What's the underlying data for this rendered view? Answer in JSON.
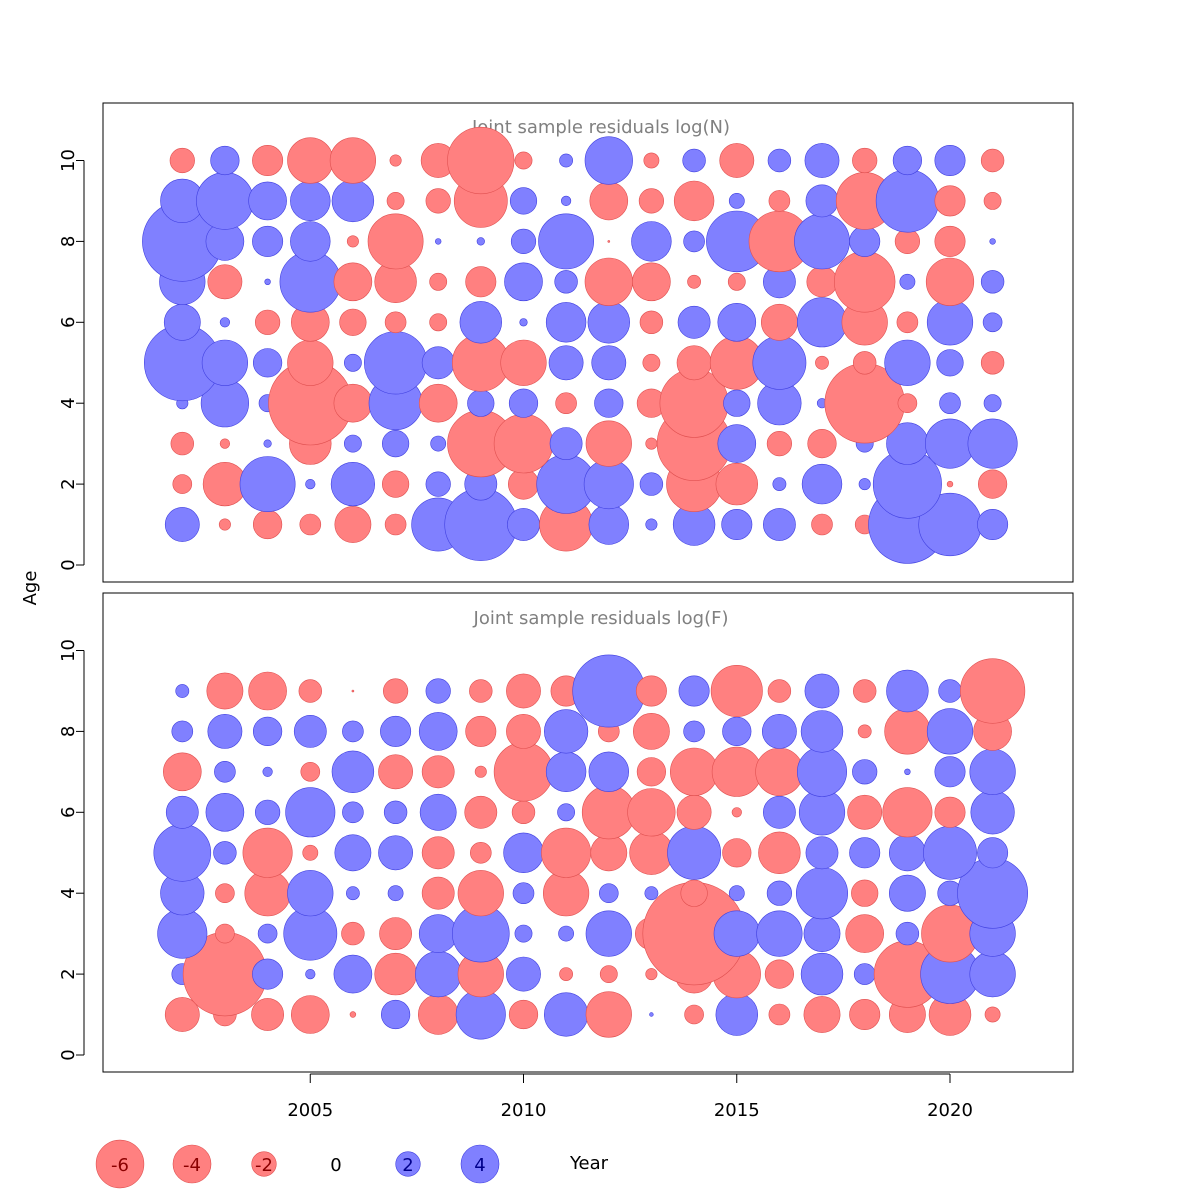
{
  "colors": {
    "negative": "#ff8080",
    "negative_stroke": "#e05050",
    "positive": "#8080ff",
    "positive_stroke": "#4040e0",
    "title": "#808080"
  },
  "axes": {
    "ylabel": "Age",
    "xlabel": "Year"
  },
  "legend": {
    "items": [
      {
        "label": "-6",
        "value": -6
      },
      {
        "label": "-4",
        "value": -4
      },
      {
        "label": "-2",
        "value": -2
      },
      {
        "label": "0",
        "value": 0
      },
      {
        "label": "2",
        "value": 2
      },
      {
        "label": "4",
        "value": 4
      }
    ]
  },
  "chart_data": [
    {
      "type": "scatter",
      "subtype": "bubble",
      "title": "Joint sample residuals log(N)",
      "xlabel": "Year",
      "ylabel": "Age",
      "xlim": [
        2000,
        2023
      ],
      "ylim": [
        -0.4,
        11.4
      ],
      "xticks": [
        "2005",
        "2010",
        "2015",
        "2020"
      ],
      "yticks": [
        "0",
        "2",
        "4",
        "6",
        "8",
        "10"
      ],
      "years": [
        2002,
        2003,
        2004,
        2005,
        2006,
        2007,
        2008,
        2009,
        2010,
        2011,
        2012,
        2013,
        2014,
        2015,
        2016,
        2017,
        2018,
        2019,
        2020,
        2021
      ],
      "ages": [
        1,
        2,
        3,
        4,
        5,
        6,
        7,
        8,
        9,
        10
      ],
      "residuals": [
        [
          1.8,
          -0.6,
          -1.5,
          -1.1,
          -1.9,
          -1.1,
          2.8,
          3.8,
          1.7,
          -2.8,
          2.1,
          0.6,
          2.2,
          1.6,
          1.7,
          -1.1,
          -1.0,
          4.1,
          3.3,
          1.6
        ],
        [
          -1.0,
          -2.3,
          2.9,
          0.5,
          2.3,
          -1.4,
          1.3,
          1.7,
          -1.6,
          3.1,
          2.6,
          1.2,
          -2.9,
          -2.2,
          0.7,
          2.1,
          0.6,
          3.6,
          -0.3,
          -1.5
        ],
        [
          -1.2,
          -0.5,
          0.4,
          -2.2,
          0.9,
          1.4,
          0.8,
          -3.5,
          -3.1,
          1.7,
          -2.4,
          -0.6,
          -3.9,
          2.0,
          -1.3,
          -1.5,
          0.9,
          2.2,
          2.6,
          2.6
        ],
        [
          0.6,
          2.5,
          0.9,
          -4.4,
          -2.0,
          2.8,
          -2.0,
          1.4,
          1.5,
          -1.1,
          1.5,
          -1.5,
          -3.6,
          1.4,
          2.3,
          0.5,
          -4.2,
          -1.0,
          1.1,
          0.9
        ],
        [
          4.0,
          2.4,
          1.5,
          -2.4,
          0.9,
          3.3,
          1.7,
          -3.0,
          -2.4,
          1.8,
          1.8,
          -0.9,
          -1.8,
          -2.8,
          2.8,
          -0.7,
          -1.2,
          2.4,
          1.4,
          -1.2
        ],
        [
          1.9,
          0.5,
          -1.3,
          -2.0,
          -1.4,
          -1.1,
          -0.9,
          2.2,
          0.4,
          2.1,
          2.2,
          -1.2,
          1.7,
          2.0,
          -1.9,
          2.6,
          -2.4,
          -1.1,
          2.4,
          1.0
        ],
        [
          2.4,
          -1.8,
          0.3,
          3.2,
          -2.0,
          -2.2,
          -0.9,
          -1.6,
          2.0,
          1.2,
          -2.5,
          -2.0,
          -0.7,
          -0.9,
          1.7,
          -1.6,
          -3.2,
          0.8,
          -2.5,
          1.2
        ],
        [
          4.2,
          2.0,
          1.6,
          2.1,
          -0.6,
          -2.9,
          0.3,
          0.4,
          1.3,
          2.9,
          -0.1,
          2.1,
          1.1,
          3.2,
          -3.2,
          2.9,
          1.6,
          -1.3,
          -1.6,
          0.3
        ],
        [
          2.3,
          3.0,
          2.0,
          2.1,
          2.2,
          -0.9,
          -1.3,
          -2.8,
          1.4,
          0.5,
          -2.0,
          -1.3,
          -2.1,
          0.8,
          -1.1,
          1.7,
          -3.0,
          3.3,
          -1.6,
          -0.9
        ],
        [
          -1.3,
          1.5,
          -1.6,
          -2.4,
          -2.4,
          -0.6,
          -1.8,
          -3.5,
          -0.9,
          0.7,
          2.5,
          -0.8,
          1.2,
          -1.8,
          1.2,
          1.8,
          -1.3,
          1.5,
          1.6,
          -1.2
        ]
      ]
    },
    {
      "type": "scatter",
      "subtype": "bubble",
      "title": "Joint sample residuals log(F)",
      "xlabel": "Year",
      "ylabel": "Age",
      "xlim": [
        2000,
        2023
      ],
      "ylim": [
        -0.4,
        11.4
      ],
      "xticks": [
        "2005",
        "2010",
        "2015",
        "2020"
      ],
      "yticks": [
        "0",
        "2",
        "4",
        "6",
        "8",
        "10"
      ],
      "years": [
        2002,
        2003,
        2004,
        2005,
        2006,
        2007,
        2008,
        2009,
        2010,
        2011,
        2012,
        2013,
        2014,
        2015,
        2016,
        2017,
        2018,
        2019,
        2020,
        2021
      ],
      "ages": [
        1,
        2,
        3,
        4,
        5,
        6,
        7,
        8,
        9
      ],
      "residuals": [
        [
          -1.8,
          -1.2,
          -1.7,
          -2.0,
          -0.3,
          1.5,
          -2.1,
          2.6,
          -1.5,
          2.3,
          -2.4,
          0.2,
          -1.0,
          2.2,
          -1.1,
          -1.9,
          -1.6,
          -1.9,
          -2.2,
          -0.8
        ],
        [
          1.1,
          -4.4,
          1.6,
          0.5,
          2.0,
          -2.2,
          2.4,
          -2.4,
          1.8,
          -0.7,
          -0.9,
          -0.6,
          -2.0,
          -2.5,
          -1.5,
          2.2,
          1.1,
          -3.5,
          3.1,
          2.4
        ],
        [
          2.6,
          -1.0,
          1.0,
          2.8,
          -1.2,
          -1.7,
          2.0,
          3.0,
          0.9,
          0.8,
          2.4,
          -1.7,
          -5.4,
          2.4,
          2.4,
          1.9,
          -2.0,
          1.2,
          -3.0,
          2.4
        ],
        [
          2.3,
          -1.0,
          -2.4,
          2.4,
          0.7,
          0.8,
          -1.7,
          -2.4,
          1.1,
          -2.4,
          1.0,
          0.7,
          -1.4,
          0.8,
          1.3,
          2.7,
          -1.4,
          1.9,
          1.3,
          3.7
        ],
        [
          3.0,
          1.2,
          -2.6,
          -0.8,
          1.9,
          1.8,
          -1.7,
          -1.1,
          2.1,
          -2.6,
          -1.9,
          -2.3,
          2.8,
          -1.5,
          -2.2,
          1.7,
          1.6,
          1.9,
          2.8,
          1.6
        ],
        [
          1.7,
          2.0,
          1.3,
          2.6,
          1.1,
          1.2,
          1.9,
          -1.7,
          -1.2,
          0.9,
          -2.8,
          -2.5,
          -1.8,
          -0.5,
          1.7,
          2.4,
          -1.8,
          -2.6,
          -1.6,
          2.3
        ],
        [
          -2.0,
          1.1,
          0.5,
          -1.0,
          2.2,
          -1.8,
          -1.7,
          -0.6,
          -3.1,
          2.1,
          2.1,
          -1.5,
          -2.5,
          -2.6,
          -2.5,
          2.6,
          1.3,
          0.3,
          1.6,
          2.4
        ],
        [
          1.1,
          1.8,
          1.5,
          1.7,
          1.1,
          1.6,
          2.0,
          -1.6,
          -1.8,
          2.3,
          -1.1,
          -1.9,
          1.1,
          1.5,
          1.8,
          2.2,
          -0.7,
          -2.4,
          2.4,
          -2.0
        ],
        [
          0.7,
          -1.9,
          -2.0,
          -1.2,
          -0.1,
          -1.3,
          1.3,
          -1.2,
          -1.8,
          -1.6,
          3.8,
          -1.6,
          1.6,
          -2.7,
          -1.2,
          1.8,
          -1.2,
          2.2,
          1.2,
          -3.4
        ]
      ]
    }
  ]
}
